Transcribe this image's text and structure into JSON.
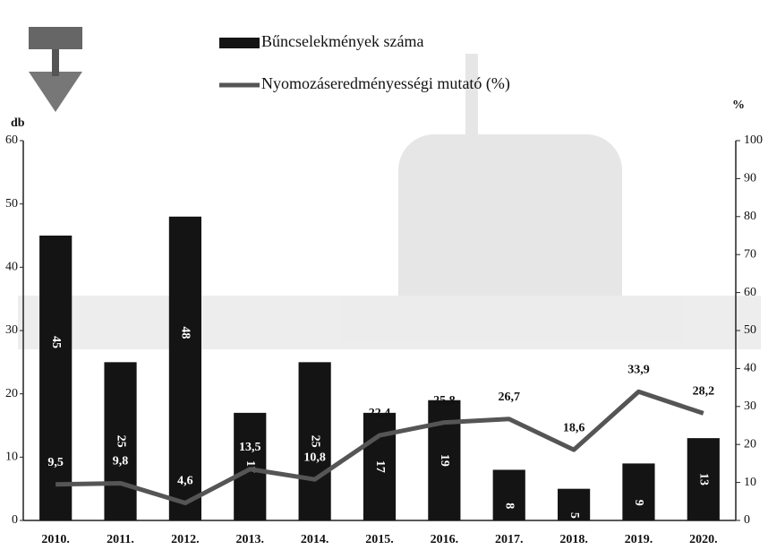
{
  "chart_data": {
    "type": "bar",
    "categories": [
      "2010.",
      "2011.",
      "2012.",
      "2013.",
      "2014.",
      "2015.",
      "2016.",
      "2017.",
      "2018.",
      "2019.",
      "2020."
    ],
    "series": [
      {
        "name": "Bűncselekmények száma",
        "type": "bar",
        "color": "#141414",
        "values": [
          45,
          25,
          48,
          17,
          25,
          17,
          19,
          8,
          5,
          9,
          13
        ]
      },
      {
        "name": "Nyomozáseredményességi mutató (%)",
        "type": "line",
        "axis": "y2",
        "color": "#555555",
        "values": [
          9.5,
          9.8,
          4.6,
          13.5,
          10.8,
          22.4,
          25.8,
          26.7,
          18.6,
          33.9,
          28.2
        ],
        "value_labels": [
          "9,5",
          "9,8",
          "4,6",
          "13,5",
          "10,8",
          "22,4",
          "25,8",
          "26,7",
          "18,6",
          "33,9",
          "28,2"
        ]
      }
    ],
    "ylabel": "db",
    "y2label": "%",
    "ylim": [
      0,
      60
    ],
    "yticks": [
      0,
      10,
      20,
      30,
      40,
      50,
      60
    ],
    "y2lim": [
      0,
      100
    ],
    "y2ticks": [
      0,
      10,
      20,
      30,
      40,
      50,
      60,
      70,
      80,
      90,
      100
    ],
    "legend": "top"
  }
}
